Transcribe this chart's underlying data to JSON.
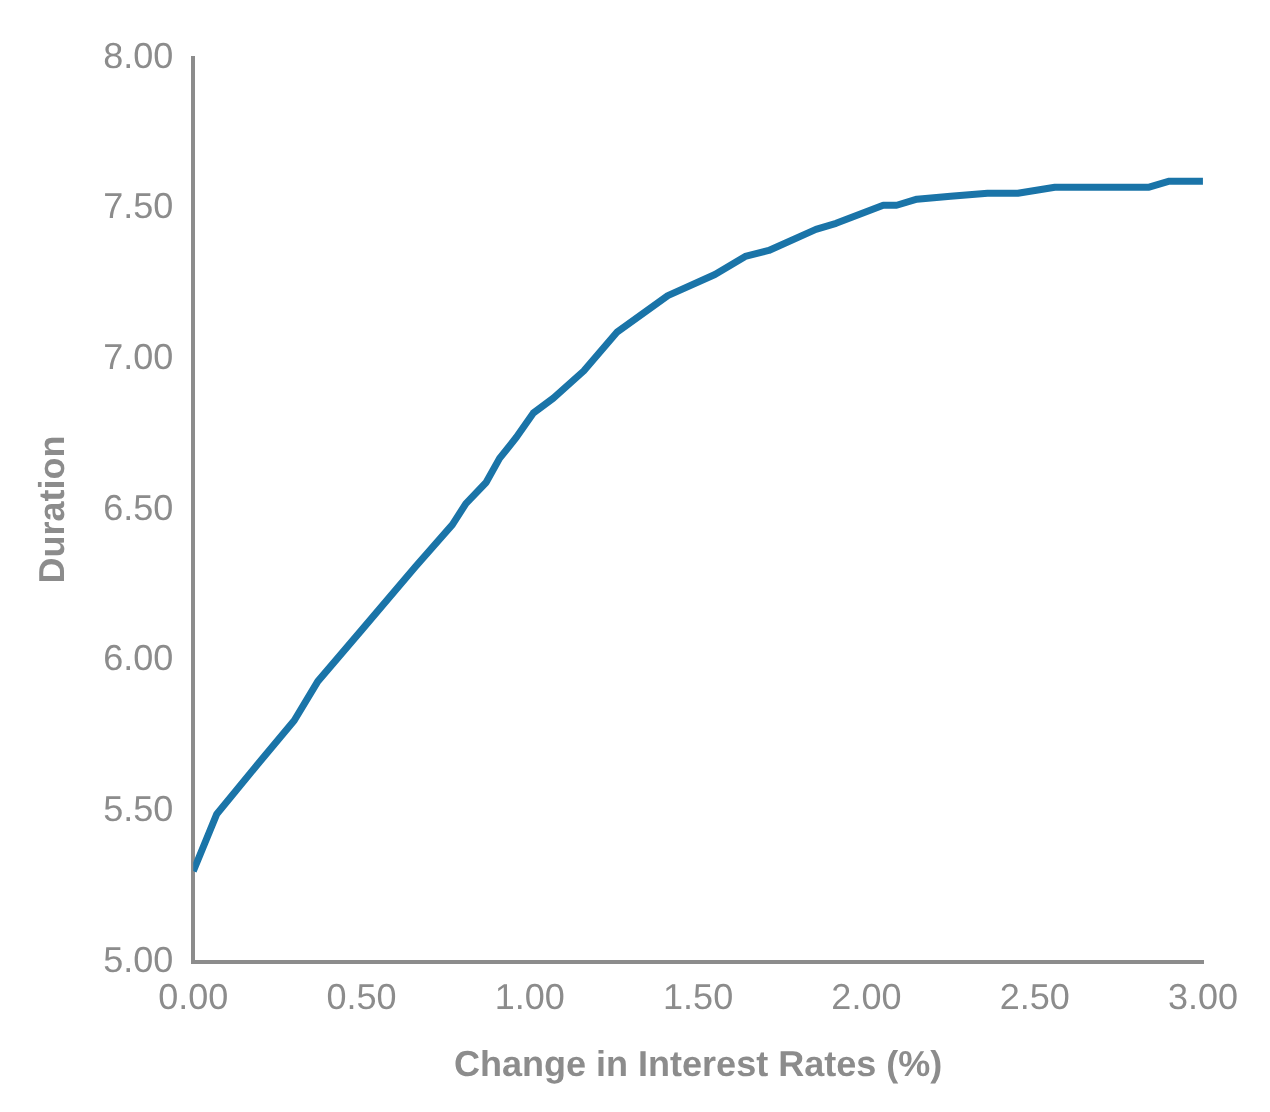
{
  "chart_data": {
    "type": "line",
    "xlabel": "Change in Interest Rates (%)",
    "ylabel": "Duration",
    "xlim": [
      0,
      3
    ],
    "xticks": [
      {
        "value": 0,
        "label": "0.00"
      },
      {
        "value": 0.5,
        "label": "0.50"
      },
      {
        "value": 1,
        "label": "1.00"
      },
      {
        "value": 1.5,
        "label": "1.50"
      },
      {
        "value": 2,
        "label": "2.00"
      },
      {
        "value": 2.5,
        "label": "2.50"
      },
      {
        "value": 3,
        "label": "3.00"
      }
    ],
    "ylim": [
      5,
      8
    ],
    "yticks": [
      {
        "value": 5,
        "label": "5.00"
      },
      {
        "value": 5.5,
        "label": "5.50"
      },
      {
        "value": 6,
        "label": "6.00"
      },
      {
        "value": 6.5,
        "label": "6.50"
      },
      {
        "value": 7,
        "label": "7.00"
      },
      {
        "value": 7.5,
        "label": "7.50"
      },
      {
        "value": 8,
        "label": "8.00"
      }
    ],
    "grid": false,
    "legend": false,
    "marker": "none",
    "line_style": "solid",
    "series": [
      {
        "color": "#1a74a8",
        "x": [
          0,
          0.07,
          0.21,
          0.3,
          0.37,
          0.5,
          0.66,
          0.77,
          0.81,
          0.87,
          0.91,
          0.96,
          1.01,
          1.07,
          1.16,
          1.26,
          1.41,
          1.55,
          1.64,
          1.71,
          1.85,
          1.91,
          2.05,
          2.09,
          2.15,
          2.25,
          2.36,
          2.45,
          2.56,
          2.84,
          2.9,
          3.0
        ],
        "values": [
          5.3,
          5.49,
          5.68,
          5.8,
          5.93,
          6.1,
          6.31,
          6.45,
          6.52,
          6.59,
          6.67,
          6.74,
          6.82,
          6.87,
          6.96,
          7.09,
          7.21,
          7.28,
          7.34,
          7.36,
          7.43,
          7.45,
          7.51,
          7.51,
          7.53,
          7.54,
          7.55,
          7.55,
          7.57,
          7.57,
          7.59,
          7.59
        ]
      }
    ]
  }
}
